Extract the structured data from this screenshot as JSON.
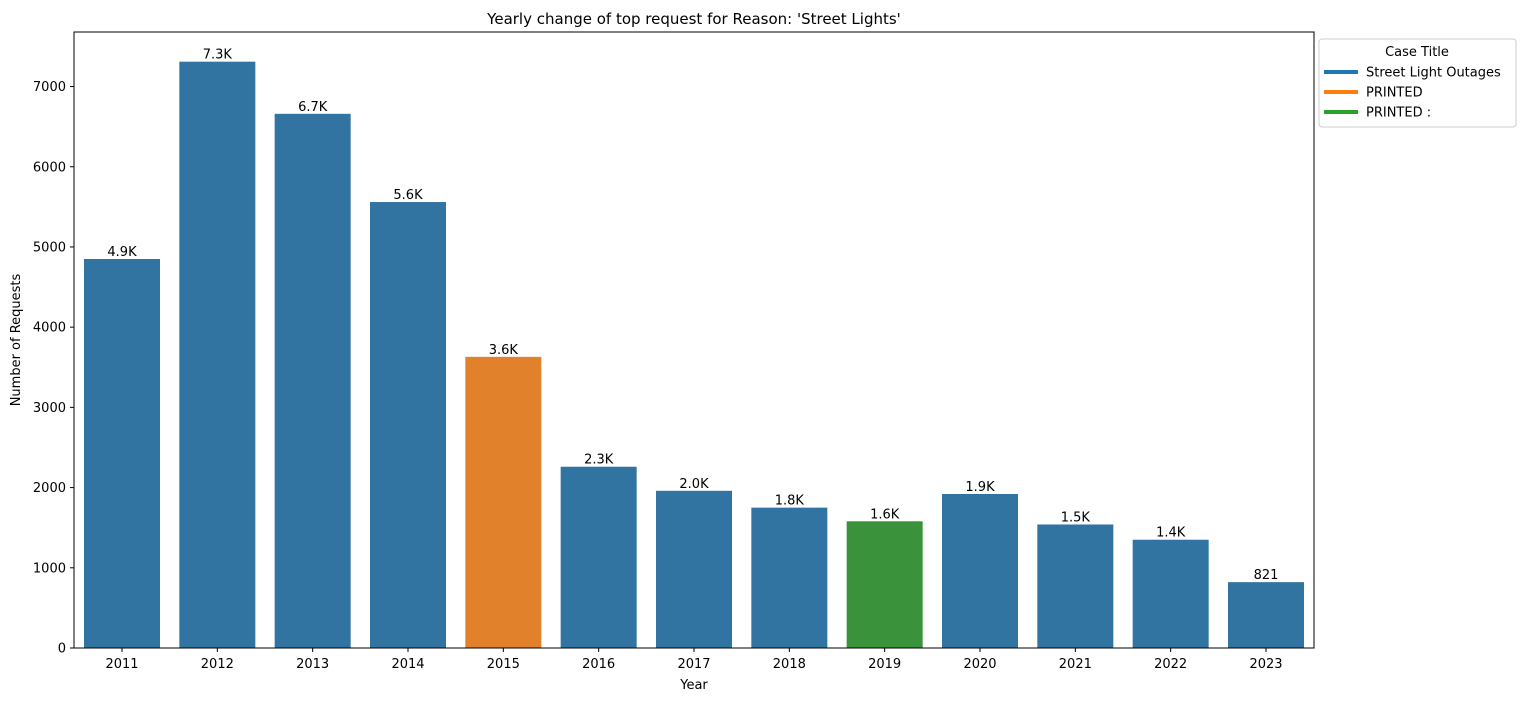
{
  "chart_data": {
    "type": "bar",
    "title": "Yearly change of top request for Reason: 'Street Lights'",
    "xlabel": "Year",
    "ylabel": "Number of Requests",
    "ylim": [
      0,
      7680
    ],
    "yticks": [
      0,
      1000,
      2000,
      3000,
      4000,
      5000,
      6000,
      7000
    ],
    "categories": [
      "2011",
      "2012",
      "2013",
      "2014",
      "2015",
      "2016",
      "2017",
      "2018",
      "2019",
      "2020",
      "2021",
      "2022",
      "2023"
    ],
    "values": [
      4850,
      7310,
      6660,
      5560,
      3630,
      2260,
      1960,
      1750,
      1580,
      1920,
      1540,
      1350,
      821
    ],
    "value_labels": [
      "4.9K",
      "7.3K",
      "6.7K",
      "5.6K",
      "3.6K",
      "2.3K",
      "2.0K",
      "1.8K",
      "1.6K",
      "1.9K",
      "1.5K",
      "1.4K",
      "821"
    ],
    "bar_series": [
      "Street Light Outages",
      "Street Light Outages",
      "Street Light Outages",
      "Street Light Outages",
      "PRINTED",
      "Street Light Outages",
      "Street Light Outages",
      "Street Light Outages",
      "PRINTED :",
      "Street Light Outages",
      "Street Light Outages",
      "Street Light Outages",
      "Street Light Outages"
    ],
    "legend": {
      "title": "Case Title",
      "placement": "outside-top-right",
      "entries": [
        {
          "name": "Street Light Outages",
          "color": "#3274a1"
        },
        {
          "name": "PRINTED",
          "color": "#e1812c"
        },
        {
          "name": "PRINTED :",
          "color": "#3a923a"
        }
      ]
    },
    "legend_line_colors": {
      "Street Light Outages": "#1f77b4",
      "PRINTED": "#ff7f0e",
      "PRINTED :": "#2ca02c"
    },
    "grid": false
  }
}
